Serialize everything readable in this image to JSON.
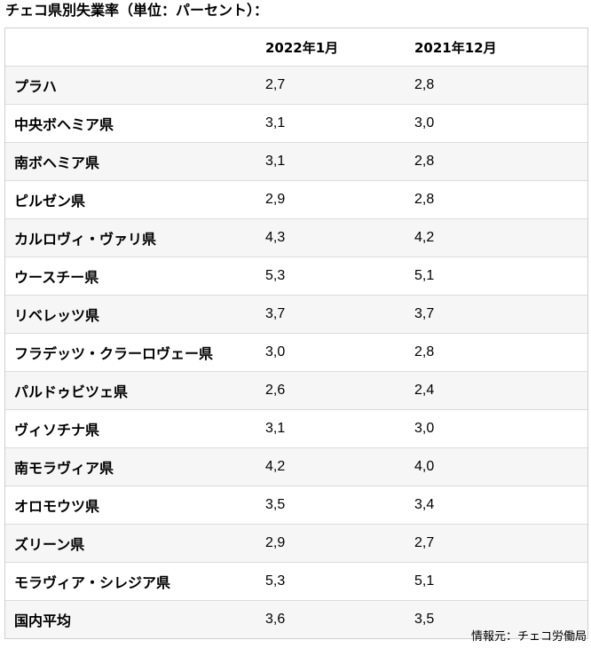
{
  "title": "チェコ県別失業率（単位：パーセント）：",
  "table": {
    "headers": [
      "",
      "2022年1月",
      "2021年12月"
    ],
    "rows": [
      {
        "region": "プラハ",
        "jan_2022": "2,7",
        "dec_2021": "2,8"
      },
      {
        "region": "中央ボヘミア県",
        "jan_2022": "3,1",
        "dec_2021": "3,0"
      },
      {
        "region": "南ボヘミア県",
        "jan_2022": "3,1",
        "dec_2021": "2,8"
      },
      {
        "region": "ピルゼン県",
        "jan_2022": "2,9",
        "dec_2021": "2,8"
      },
      {
        "region": "カルロヴィ・ヴァリ県",
        "jan_2022": "4,3",
        "dec_2021": "4,2"
      },
      {
        "region": "ウースチー県",
        "jan_2022": "5,3",
        "dec_2021": "5,1"
      },
      {
        "region": "リベレッツ県",
        "jan_2022": "3,7",
        "dec_2021": "3,7"
      },
      {
        "region": "フラデッツ・クラーロヴェー県",
        "jan_2022": "3,0",
        "dec_2021": "2,8"
      },
      {
        "region": "パルドゥビツェ県",
        "jan_2022": "2,6",
        "dec_2021": "2,4"
      },
      {
        "region": "ヴィソチナ県",
        "jan_2022": "3,1",
        "dec_2021": "3,0"
      },
      {
        "region": "南モラヴィア県",
        "jan_2022": "4,2",
        "dec_2021": "4,0"
      },
      {
        "region": "オロモウツ県",
        "jan_2022": "3,5",
        "dec_2021": "3,4"
      },
      {
        "region": "ズリーン県",
        "jan_2022": "2,9",
        "dec_2021": "2,7"
      },
      {
        "region": "モラヴィア・シレジア県",
        "jan_2022": "5,3",
        "dec_2021": "5,1"
      },
      {
        "region": "国内平均",
        "jan_2022": "3,6",
        "dec_2021": "3,5"
      }
    ]
  },
  "source": "情報元：チェコ労働局"
}
